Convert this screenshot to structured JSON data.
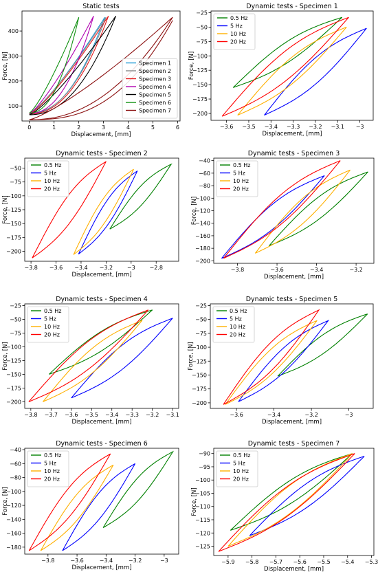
{
  "chart_data": [
    {
      "type": "line",
      "title": "Static tests",
      "xlabel": "Displacement, [mm]",
      "ylabel": "Force, [N]",
      "xlim": [
        -0.3,
        6.1
      ],
      "ylim": [
        40,
        480
      ],
      "xticks": [
        0,
        1,
        2,
        3,
        4,
        5,
        6
      ],
      "yticks": [
        100,
        200,
        300,
        400
      ],
      "legend": "lower-right",
      "series": [
        {
          "name": "Specimen 1",
          "color": "#1f9ad6",
          "loop": {
            "x0": 0,
            "y0": 70,
            "x1": 3.05,
            "y1": 455
          }
        },
        {
          "name": "Specimen 2",
          "color": "#888888",
          "loop": {
            "x0": 0,
            "y0": 72,
            "x1": 3.1,
            "y1": 455
          }
        },
        {
          "name": "Specimen 3",
          "color": "#e41a1c",
          "loop": {
            "x0": 0,
            "y0": 68,
            "x1": 3.2,
            "y1": 460
          }
        },
        {
          "name": "Specimen 4",
          "color": "#b000b0",
          "loop": {
            "x0": 0,
            "y0": 70,
            "x1": 2.6,
            "y1": 460
          }
        },
        {
          "name": "Specimen 5",
          "color": "#000000",
          "loop": {
            "x0": 0,
            "y0": 65,
            "x1": 3.5,
            "y1": 460
          }
        },
        {
          "name": "Specimen 6",
          "color": "#109010",
          "loop": {
            "x0": 0,
            "y0": 72,
            "x1": 2.0,
            "y1": 455
          }
        },
        {
          "name": "Specimen 7",
          "color": "#8b1010",
          "loop": {
            "x0": 0,
            "y0": 45,
            "x1": 5.8,
            "y1": 455
          }
        }
      ]
    },
    {
      "type": "line",
      "title": "Dynamic tests - Specimen 1",
      "xlabel": "Displacement, [mm]",
      "ylabel": "Force, [N]",
      "xlim": [
        -3.67,
        -2.94
      ],
      "ylim": [
        -212,
        -22
      ],
      "xticks": [
        -3.6,
        -3.5,
        -3.4,
        -3.3,
        -3.2,
        -3.1,
        -3.0
      ],
      "yticks": [
        -200,
        -175,
        -150,
        -125,
        -100,
        -75,
        -50,
        -25
      ],
      "legend": "upper-left",
      "series": [
        {
          "name": "0.5 Hz",
          "color": "#008000",
          "loop": {
            "x0": -3.57,
            "y0": -155,
            "x1": -3.08,
            "y1": -33
          }
        },
        {
          "name": "5 Hz",
          "color": "#0000ff",
          "loop": {
            "x0": -3.43,
            "y0": -203,
            "x1": -2.97,
            "y1": -52
          }
        },
        {
          "name": "10 Hz",
          "color": "#ffb000",
          "loop": {
            "x0": -3.55,
            "y0": -203,
            "x1": -3.06,
            "y1": -50
          }
        },
        {
          "name": "20 Hz",
          "color": "#ff0000",
          "loop": {
            "x0": -3.62,
            "y0": -205,
            "x1": -3.05,
            "y1": -33
          }
        }
      ]
    },
    {
      "type": "line",
      "title": "Dynamic tests - Specimen 2",
      "xlabel": "Displacement, [mm]",
      "ylabel": "Force, [N]",
      "xlim": [
        -3.85,
        -2.62
      ],
      "ylim": [
        -218,
        -32
      ],
      "xticks": [
        -3.8,
        -3.6,
        -3.4,
        -3.2,
        -3.0,
        -2.8
      ],
      "yticks": [
        -200,
        -175,
        -150,
        -125,
        -100,
        -75,
        -50
      ],
      "legend": "upper-left",
      "series": [
        {
          "name": "0.5 Hz",
          "color": "#008000",
          "loop": {
            "x0": -3.17,
            "y0": -160,
            "x1": -2.68,
            "y1": -43
          }
        },
        {
          "name": "5 Hz",
          "color": "#0000ff",
          "loop": {
            "x0": -3.42,
            "y0": -205,
            "x1": -2.95,
            "y1": -55
          }
        },
        {
          "name": "10 Hz",
          "color": "#ffb000",
          "loop": {
            "x0": -3.46,
            "y0": -206,
            "x1": -2.98,
            "y1": -52
          }
        },
        {
          "name": "20 Hz",
          "color": "#ff0000",
          "loop": {
            "x0": -3.79,
            "y0": -212,
            "x1": -3.2,
            "y1": -38
          }
        }
      ]
    },
    {
      "type": "line",
      "title": "Dynamic tests - Specimen 3",
      "xlabel": "Displacement, [mm]",
      "ylabel": "Force, [N]",
      "xlim": [
        -3.92,
        -3.11
      ],
      "ylim": [
        -204,
        -36
      ],
      "xticks": [
        -3.8,
        -3.6,
        -3.4,
        -3.2
      ],
      "yticks": [
        -200,
        -180,
        -160,
        -140,
        -120,
        -100,
        -80,
        -60,
        -40
      ],
      "legend": "upper-left",
      "series": [
        {
          "name": "0.5 Hz",
          "color": "#008000",
          "loop": {
            "x0": -3.64,
            "y0": -176,
            "x1": -3.14,
            "y1": -58
          }
        },
        {
          "name": "5 Hz",
          "color": "#0000ff",
          "loop": {
            "x0": -3.88,
            "y0": -196,
            "x1": -3.36,
            "y1": -64
          }
        },
        {
          "name": "10 Hz",
          "color": "#ffb000",
          "loop": {
            "x0": -3.71,
            "y0": -188,
            "x1": -3.23,
            "y1": -55
          }
        },
        {
          "name": "20 Hz",
          "color": "#ff0000",
          "loop": {
            "x0": -3.87,
            "y0": -196,
            "x1": -3.28,
            "y1": -40
          }
        }
      ]
    },
    {
      "type": "line",
      "title": "Dynamic tests - Specimen 4",
      "xlabel": "Displacement, [mm]",
      "ylabel": "Force, [N]",
      "xlim": [
        -3.83,
        -3.07
      ],
      "ylim": [
        -212,
        -22
      ],
      "xticks": [
        -3.8,
        -3.7,
        -3.6,
        -3.5,
        -3.4,
        -3.3,
        -3.2,
        -3.1
      ],
      "yticks": [
        -200,
        -175,
        -150,
        -125,
        -100,
        -75,
        -50,
        -25
      ],
      "legend": "upper-left",
      "series": [
        {
          "name": "0.5 Hz",
          "color": "#008000",
          "loop": {
            "x0": -3.71,
            "y0": -150,
            "x1": -3.2,
            "y1": -33
          }
        },
        {
          "name": "5 Hz",
          "color": "#0000ff",
          "loop": {
            "x0": -3.6,
            "y0": -193,
            "x1": -3.1,
            "y1": -48
          }
        },
        {
          "name": "10 Hz",
          "color": "#ffb000",
          "loop": {
            "x0": -3.74,
            "y0": -200,
            "x1": -3.25,
            "y1": -52
          }
        },
        {
          "name": "20 Hz",
          "color": "#ff0000",
          "loop": {
            "x0": -3.81,
            "y0": -200,
            "x1": -3.22,
            "y1": -33
          }
        }
      ]
    },
    {
      "type": "line",
      "title": "Dynamic tests - Specimen 5",
      "xlabel": "Displacement, [mm]",
      "ylabel": "Force, [N]",
      "xlim": [
        -3.74,
        -2.87
      ],
      "ylim": [
        -210,
        -22
      ],
      "xticks": [
        -3.6,
        -3.4,
        -3.2,
        -3.0
      ],
      "yticks": [
        -200,
        -175,
        -150,
        -125,
        -100,
        -75,
        -50,
        -25
      ],
      "legend": "upper-left",
      "series": [
        {
          "name": "0.5 Hz",
          "color": "#008000",
          "loop": {
            "x0": -3.38,
            "y0": -152,
            "x1": -2.9,
            "y1": -40
          }
        },
        {
          "name": "5 Hz",
          "color": "#0000ff",
          "loop": {
            "x0": -3.59,
            "y0": -198,
            "x1": -3.11,
            "y1": -52
          }
        },
        {
          "name": "10 Hz",
          "color": "#ffb000",
          "loop": {
            "x0": -3.66,
            "y0": -203,
            "x1": -3.17,
            "y1": -52
          }
        },
        {
          "name": "20 Hz",
          "color": "#ff0000",
          "loop": {
            "x0": -3.67,
            "y0": -203,
            "x1": -3.16,
            "y1": -33
          }
        }
      ]
    },
    {
      "type": "line",
      "title": "Dynamic tests - Specimen 6",
      "xlabel": "Displacement, [mm]",
      "ylabel": "Force, [N]",
      "xlim": [
        -3.96,
        -2.9
      ],
      "ylim": [
        -190,
        -38
      ],
      "xticks": [
        -3.8,
        -3.6,
        -3.4,
        -3.2,
        -3.0
      ],
      "yticks": [
        -180,
        -160,
        -140,
        -120,
        -100,
        -80,
        -60,
        -40
      ],
      "legend": "upper-left",
      "series": [
        {
          "name": "0.5 Hz",
          "color": "#008000",
          "loop": {
            "x0": -3.42,
            "y0": -152,
            "x1": -2.94,
            "y1": -43
          }
        },
        {
          "name": "5 Hz",
          "color": "#0000ff",
          "loop": {
            "x0": -3.7,
            "y0": -185,
            "x1": -3.2,
            "y1": -60
          }
        },
        {
          "name": "10 Hz",
          "color": "#ffb000",
          "loop": {
            "x0": -3.85,
            "y0": -185,
            "x1": -3.35,
            "y1": -62
          }
        },
        {
          "name": "20 Hz",
          "color": "#ff0000",
          "loop": {
            "x0": -3.93,
            "y0": -185,
            "x1": -3.37,
            "y1": -46
          }
        }
      ]
    },
    {
      "type": "line",
      "title": "Dynamic tests - Specimen 7",
      "xlabel": "Displacement, [mm]",
      "ylabel": "Force, [N]",
      "xlim": [
        -5.96,
        -5.29
      ],
      "ylim": [
        -128.5,
        -88
      ],
      "xticks": [
        -5.9,
        -5.8,
        -5.7,
        -5.6,
        -5.5,
        -5.4,
        -5.3
      ],
      "yticks": [
        -125,
        -120,
        -115,
        -110,
        -105,
        -100,
        -95,
        -90
      ],
      "legend": "upper-left",
      "series": [
        {
          "name": "0.5 Hz",
          "color": "#008000",
          "loop": {
            "x0": -5.89,
            "y0": -119,
            "x1": -5.38,
            "y1": -90
          }
        },
        {
          "name": "5 Hz",
          "color": "#0000ff",
          "loop": {
            "x0": -5.81,
            "y0": -121,
            "x1": -5.33,
            "y1": -91
          }
        },
        {
          "name": "10 Hz",
          "color": "#ffb000",
          "loop": {
            "x0": -5.9,
            "y0": -125,
            "x1": -5.38,
            "y1": -90
          }
        },
        {
          "name": "20 Hz",
          "color": "#ff0000",
          "loop": {
            "x0": -5.94,
            "y0": -127,
            "x1": -5.37,
            "y1": -90
          }
        }
      ]
    }
  ]
}
